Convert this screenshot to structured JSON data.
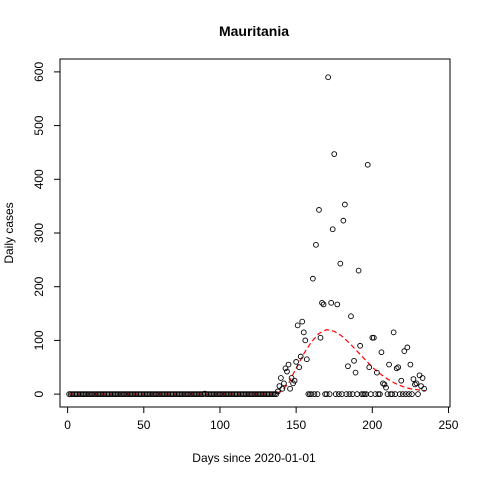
{
  "chart_data": {
    "type": "scatter",
    "title": "Mauritania",
    "xlabel": "Days since 2020-01-01",
    "ylabel": "Daily cases",
    "xlim": [
      -5,
      251
    ],
    "ylim": [
      -24,
      624
    ],
    "xticks": [
      0,
      50,
      100,
      150,
      200,
      250
    ],
    "yticks": [
      0,
      100,
      200,
      300,
      400,
      500,
      600
    ],
    "grid": false,
    "series": [
      {
        "kind": "points",
        "marker": "open-circle",
        "color": "#000000",
        "zero_days_range": [
          1,
          137
        ],
        "nonzero_early": [
          [
            90,
            1
          ]
        ],
        "points": [
          [
            138,
            5
          ],
          [
            139,
            15
          ],
          [
            140,
            30
          ],
          [
            141,
            10
          ],
          [
            142,
            20
          ],
          [
            143,
            48
          ],
          [
            144,
            42
          ],
          [
            145,
            55
          ],
          [
            146,
            10
          ],
          [
            147,
            30
          ],
          [
            148,
            20
          ],
          [
            149,
            25
          ],
          [
            150,
            60
          ],
          [
            151,
            128
          ],
          [
            152,
            50
          ],
          [
            153,
            70
          ],
          [
            154,
            135
          ],
          [
            155,
            115
          ],
          [
            156,
            100
          ],
          [
            157,
            65
          ],
          [
            158,
            0
          ],
          [
            159,
            0
          ],
          [
            160,
            0
          ],
          [
            161,
            215
          ],
          [
            162,
            0
          ],
          [
            163,
            278
          ],
          [
            164,
            0
          ],
          [
            165,
            343
          ],
          [
            166,
            105
          ],
          [
            167,
            170
          ],
          [
            168,
            167
          ],
          [
            169,
            0
          ],
          [
            170,
            0
          ],
          [
            171,
            590
          ],
          [
            172,
            0
          ],
          [
            173,
            170
          ],
          [
            174,
            307
          ],
          [
            175,
            447
          ],
          [
            176,
            0
          ],
          [
            177,
            167
          ],
          [
            178,
            0
          ],
          [
            179,
            243
          ],
          [
            180,
            0
          ],
          [
            181,
            323
          ],
          [
            182,
            353
          ],
          [
            183,
            0
          ],
          [
            184,
            52
          ],
          [
            185,
            0
          ],
          [
            186,
            145
          ],
          [
            187,
            0
          ],
          [
            188,
            62
          ],
          [
            189,
            40
          ],
          [
            190,
            0
          ],
          [
            191,
            230
          ],
          [
            192,
            90
          ],
          [
            193,
            0
          ],
          [
            194,
            0
          ],
          [
            195,
            0
          ],
          [
            196,
            0
          ],
          [
            197,
            427
          ],
          [
            198,
            50
          ],
          [
            199,
            0
          ],
          [
            200,
            105
          ],
          [
            201,
            105
          ],
          [
            202,
            0
          ],
          [
            203,
            40
          ],
          [
            204,
            0
          ],
          [
            205,
            0
          ],
          [
            206,
            78
          ],
          [
            207,
            20
          ],
          [
            208,
            18
          ],
          [
            209,
            12
          ],
          [
            210,
            0
          ],
          [
            211,
            55
          ],
          [
            212,
            0
          ],
          [
            213,
            0
          ],
          [
            214,
            115
          ],
          [
            215,
            0
          ],
          [
            216,
            48
          ],
          [
            217,
            50
          ],
          [
            218,
            0
          ],
          [
            219,
            25
          ],
          [
            220,
            0
          ],
          [
            221,
            80
          ],
          [
            222,
            0
          ],
          [
            223,
            87
          ],
          [
            224,
            0
          ],
          [
            225,
            55
          ],
          [
            226,
            0
          ],
          [
            227,
            28
          ],
          [
            228,
            18
          ],
          [
            229,
            20
          ],
          [
            230,
            0
          ],
          [
            231,
            35
          ],
          [
            232,
            15
          ],
          [
            233,
            30
          ],
          [
            234,
            10
          ]
        ]
      },
      {
        "kind": "fit-line",
        "style": "dashed",
        "color": "#ff0000",
        "points": [
          [
            1,
            0
          ],
          [
            130,
            0
          ],
          [
            135,
            0
          ],
          [
            140,
            5
          ],
          [
            145,
            20
          ],
          [
            150,
            48
          ],
          [
            155,
            75
          ],
          [
            160,
            97
          ],
          [
            165,
            113
          ],
          [
            170,
            120
          ],
          [
            175,
            117
          ],
          [
            180,
            108
          ],
          [
            185,
            95
          ],
          [
            190,
            80
          ],
          [
            195,
            65
          ],
          [
            200,
            50
          ],
          [
            205,
            38
          ],
          [
            210,
            28
          ],
          [
            215,
            20
          ],
          [
            220,
            14
          ],
          [
            225,
            10
          ],
          [
            230,
            8
          ],
          [
            235,
            6
          ]
        ]
      }
    ]
  }
}
